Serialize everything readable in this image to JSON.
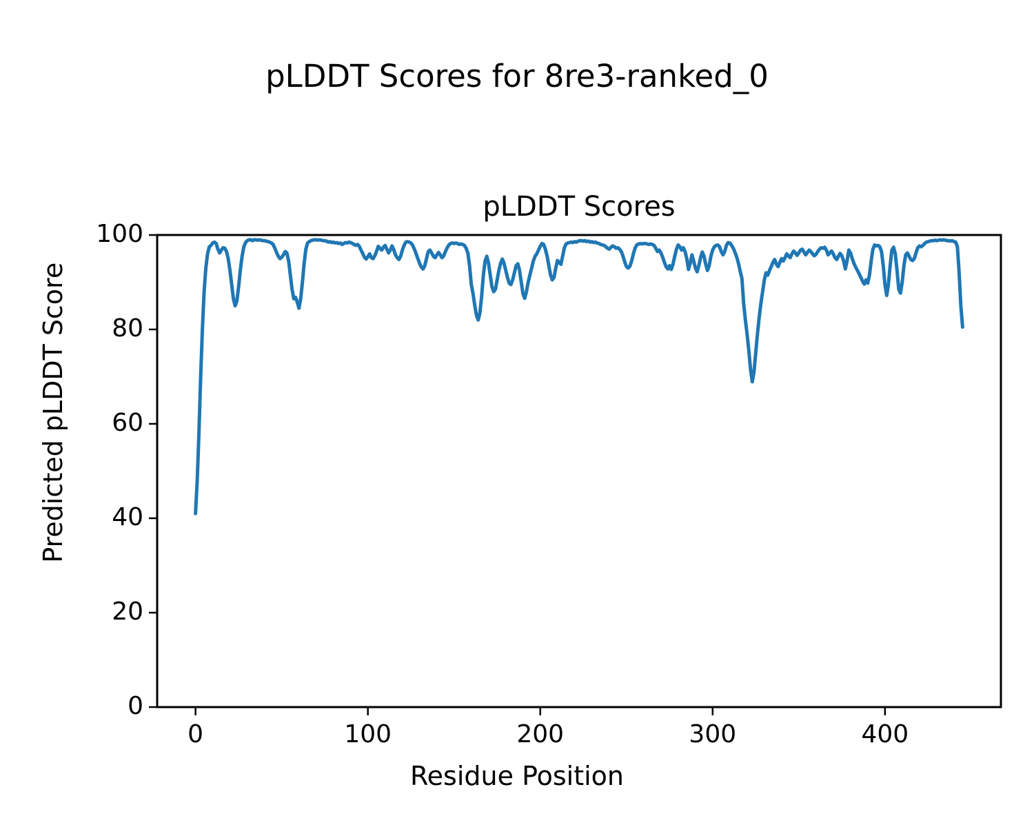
{
  "figure": {
    "suptitle": "pLDDT Scores for 8re3-ranked_0"
  },
  "chart_data": {
    "type": "line",
    "title": "pLDDT Scores",
    "xlabel": "Residue Position",
    "ylabel": "Predicted pLDDT Score",
    "series_name": "pLDDT",
    "line_color": "#1f77b4",
    "axis_color": "#000000",
    "grid": false,
    "legend": "none",
    "xlim": [
      -22.25,
      467.25
    ],
    "ylim": [
      0,
      100
    ],
    "xticks": [
      0,
      100,
      200,
      300,
      400
    ],
    "yticks": [
      0,
      20,
      40,
      60,
      80,
      100
    ],
    "x_start": 0,
    "x_step": 1,
    "values": [
      41.0,
      48.0,
      58.0,
      70.0,
      80.0,
      88.0,
      93.0,
      96.0,
      97.5,
      97.8,
      98.3,
      98.5,
      98.2,
      97.0,
      96.2,
      96.8,
      97.3,
      97.2,
      96.5,
      95.0,
      92.5,
      89.5,
      86.5,
      85.0,
      86.0,
      89.0,
      92.5,
      95.5,
      97.5,
      98.4,
      98.8,
      99.0,
      99.0,
      98.8,
      99.0,
      99.0,
      98.9,
      99.0,
      98.9,
      98.8,
      98.8,
      98.7,
      98.6,
      98.5,
      98.3,
      98.0,
      97.2,
      96.3,
      95.5,
      95.0,
      95.3,
      95.8,
      96.5,
      96.2,
      94.5,
      91.5,
      88.5,
      86.5,
      86.8,
      85.8,
      84.5,
      86.5,
      90.0,
      94.0,
      97.0,
      98.3,
      98.6,
      98.8,
      98.9,
      99.0,
      99.0,
      98.9,
      99.0,
      98.9,
      98.8,
      98.8,
      98.7,
      98.5,
      98.6,
      98.4,
      98.5,
      98.3,
      98.4,
      98.2,
      98.3,
      98.0,
      98.2,
      98.4,
      98.3,
      98.5,
      98.4,
      98.2,
      98.0,
      97.8,
      98.0,
      97.6,
      96.8,
      96.1,
      95.3,
      94.9,
      95.4,
      96.0,
      95.2,
      95.0,
      95.6,
      96.5,
      97.6,
      97.2,
      96.8,
      97.4,
      97.8,
      97.0,
      96.2,
      96.8,
      97.7,
      96.9,
      95.8,
      95.2,
      94.8,
      95.5,
      96.8,
      97.8,
      98.5,
      98.6,
      98.5,
      98.3,
      97.8,
      97.0,
      96.0,
      95.0,
      94.0,
      93.2,
      92.8,
      93.5,
      95.0,
      96.5,
      96.8,
      96.2,
      95.5,
      95.2,
      95.8,
      96.3,
      95.8,
      95.2,
      95.6,
      96.5,
      97.3,
      97.9,
      98.2,
      98.3,
      98.2,
      98.3,
      98.2,
      98.0,
      98.1,
      98.0,
      97.8,
      97.2,
      96.2,
      93.5,
      89.5,
      87.6,
      85.1,
      83.0,
      82.0,
      83.5,
      87.0,
      91.5,
      94.5,
      95.5,
      94.0,
      91.5,
      89.0,
      88.0,
      88.5,
      90.5,
      92.5,
      94.0,
      94.9,
      94.0,
      92.5,
      91.0,
      89.8,
      89.5,
      90.5,
      92.0,
      93.5,
      93.9,
      92.5,
      90.0,
      87.5,
      86.6,
      88.0,
      90.0,
      91.5,
      93.0,
      94.5,
      95.5,
      96.0,
      96.8,
      97.6,
      98.2,
      98.0,
      97.0,
      95.5,
      93.5,
      91.5,
      90.5,
      91.0,
      93.0,
      94.6,
      94.2,
      93.8,
      95.5,
      97.3,
      98.1,
      98.3,
      98.4,
      98.5,
      98.4,
      98.6,
      98.5,
      98.7,
      98.8,
      98.8,
      98.7,
      98.8,
      98.6,
      98.7,
      98.5,
      98.6,
      98.4,
      98.5,
      98.3,
      98.2,
      98.0,
      97.9,
      97.8,
      97.5,
      97.2,
      97.0,
      97.4,
      97.7,
      97.5,
      97.2,
      97.3,
      97.0,
      96.5,
      95.5,
      94.3,
      93.3,
      93.0,
      93.4,
      94.5,
      96.0,
      97.2,
      97.9,
      98.1,
      98.2,
      98.1,
      98.2,
      98.2,
      98.1,
      98.0,
      98.1,
      98.0,
      97.8,
      97.2,
      96.5,
      96.8,
      96.2,
      95.3,
      94.2,
      93.3,
      92.8,
      93.5,
      92.7,
      93.8,
      95.5,
      97.0,
      97.9,
      97.5,
      96.8,
      97.3,
      96.5,
      95.0,
      92.7,
      94.0,
      95.8,
      94.5,
      93.0,
      92.2,
      93.5,
      95.2,
      96.4,
      95.5,
      93.8,
      92.5,
      93.5,
      95.5,
      96.8,
      97.5,
      97.8,
      97.9,
      97.5,
      96.5,
      95.8,
      96.5,
      97.8,
      98.4,
      98.3,
      97.8,
      97.2,
      96.3,
      95.3,
      94.0,
      92.3,
      90.8,
      85.5,
      82.0,
      79.0,
      75.5,
      71.5,
      68.9,
      71.0,
      75.0,
      79.0,
      82.5,
      85.5,
      88.0,
      90.5,
      92.0,
      91.5,
      92.5,
      93.3,
      94.2,
      94.8,
      93.8,
      93.3,
      94.2,
      95.0,
      94.5,
      95.2,
      96.0,
      95.6,
      95.2,
      96.0,
      96.6,
      96.2,
      95.7,
      96.2,
      96.8,
      97.0,
      96.4,
      95.8,
      96.3,
      96.8,
      96.5,
      96.0,
      95.6,
      95.9,
      96.5,
      97.0,
      97.3,
      97.2,
      97.4,
      96.8,
      95.8,
      96.2,
      96.6,
      96.0,
      95.2,
      94.8,
      95.5,
      96.1,
      95.6,
      94.5,
      92.8,
      94.5,
      96.8,
      96.2,
      95.0,
      94.0,
      93.2,
      92.5,
      91.8,
      91.0,
      90.2,
      89.6,
      90.5,
      89.8,
      91.5,
      94.5,
      97.0,
      97.9,
      97.7,
      97.8,
      97.5,
      96.5,
      93.5,
      89.5,
      87.2,
      89.5,
      93.5,
      96.8,
      97.4,
      96.0,
      92.5,
      88.5,
      87.7,
      90.0,
      93.5,
      95.8,
      96.2,
      95.5,
      94.8,
      94.6,
      95.0,
      96.2,
      97.3,
      97.7,
      97.5,
      97.8,
      98.2,
      98.5,
      98.6,
      98.7,
      98.8,
      98.8,
      98.9,
      98.8,
      98.9,
      99.0,
      98.9,
      99.0,
      98.9,
      98.8,
      98.8,
      98.7,
      98.8,
      98.6,
      98.5,
      97.5,
      92.0,
      85.0,
      80.5
    ]
  }
}
